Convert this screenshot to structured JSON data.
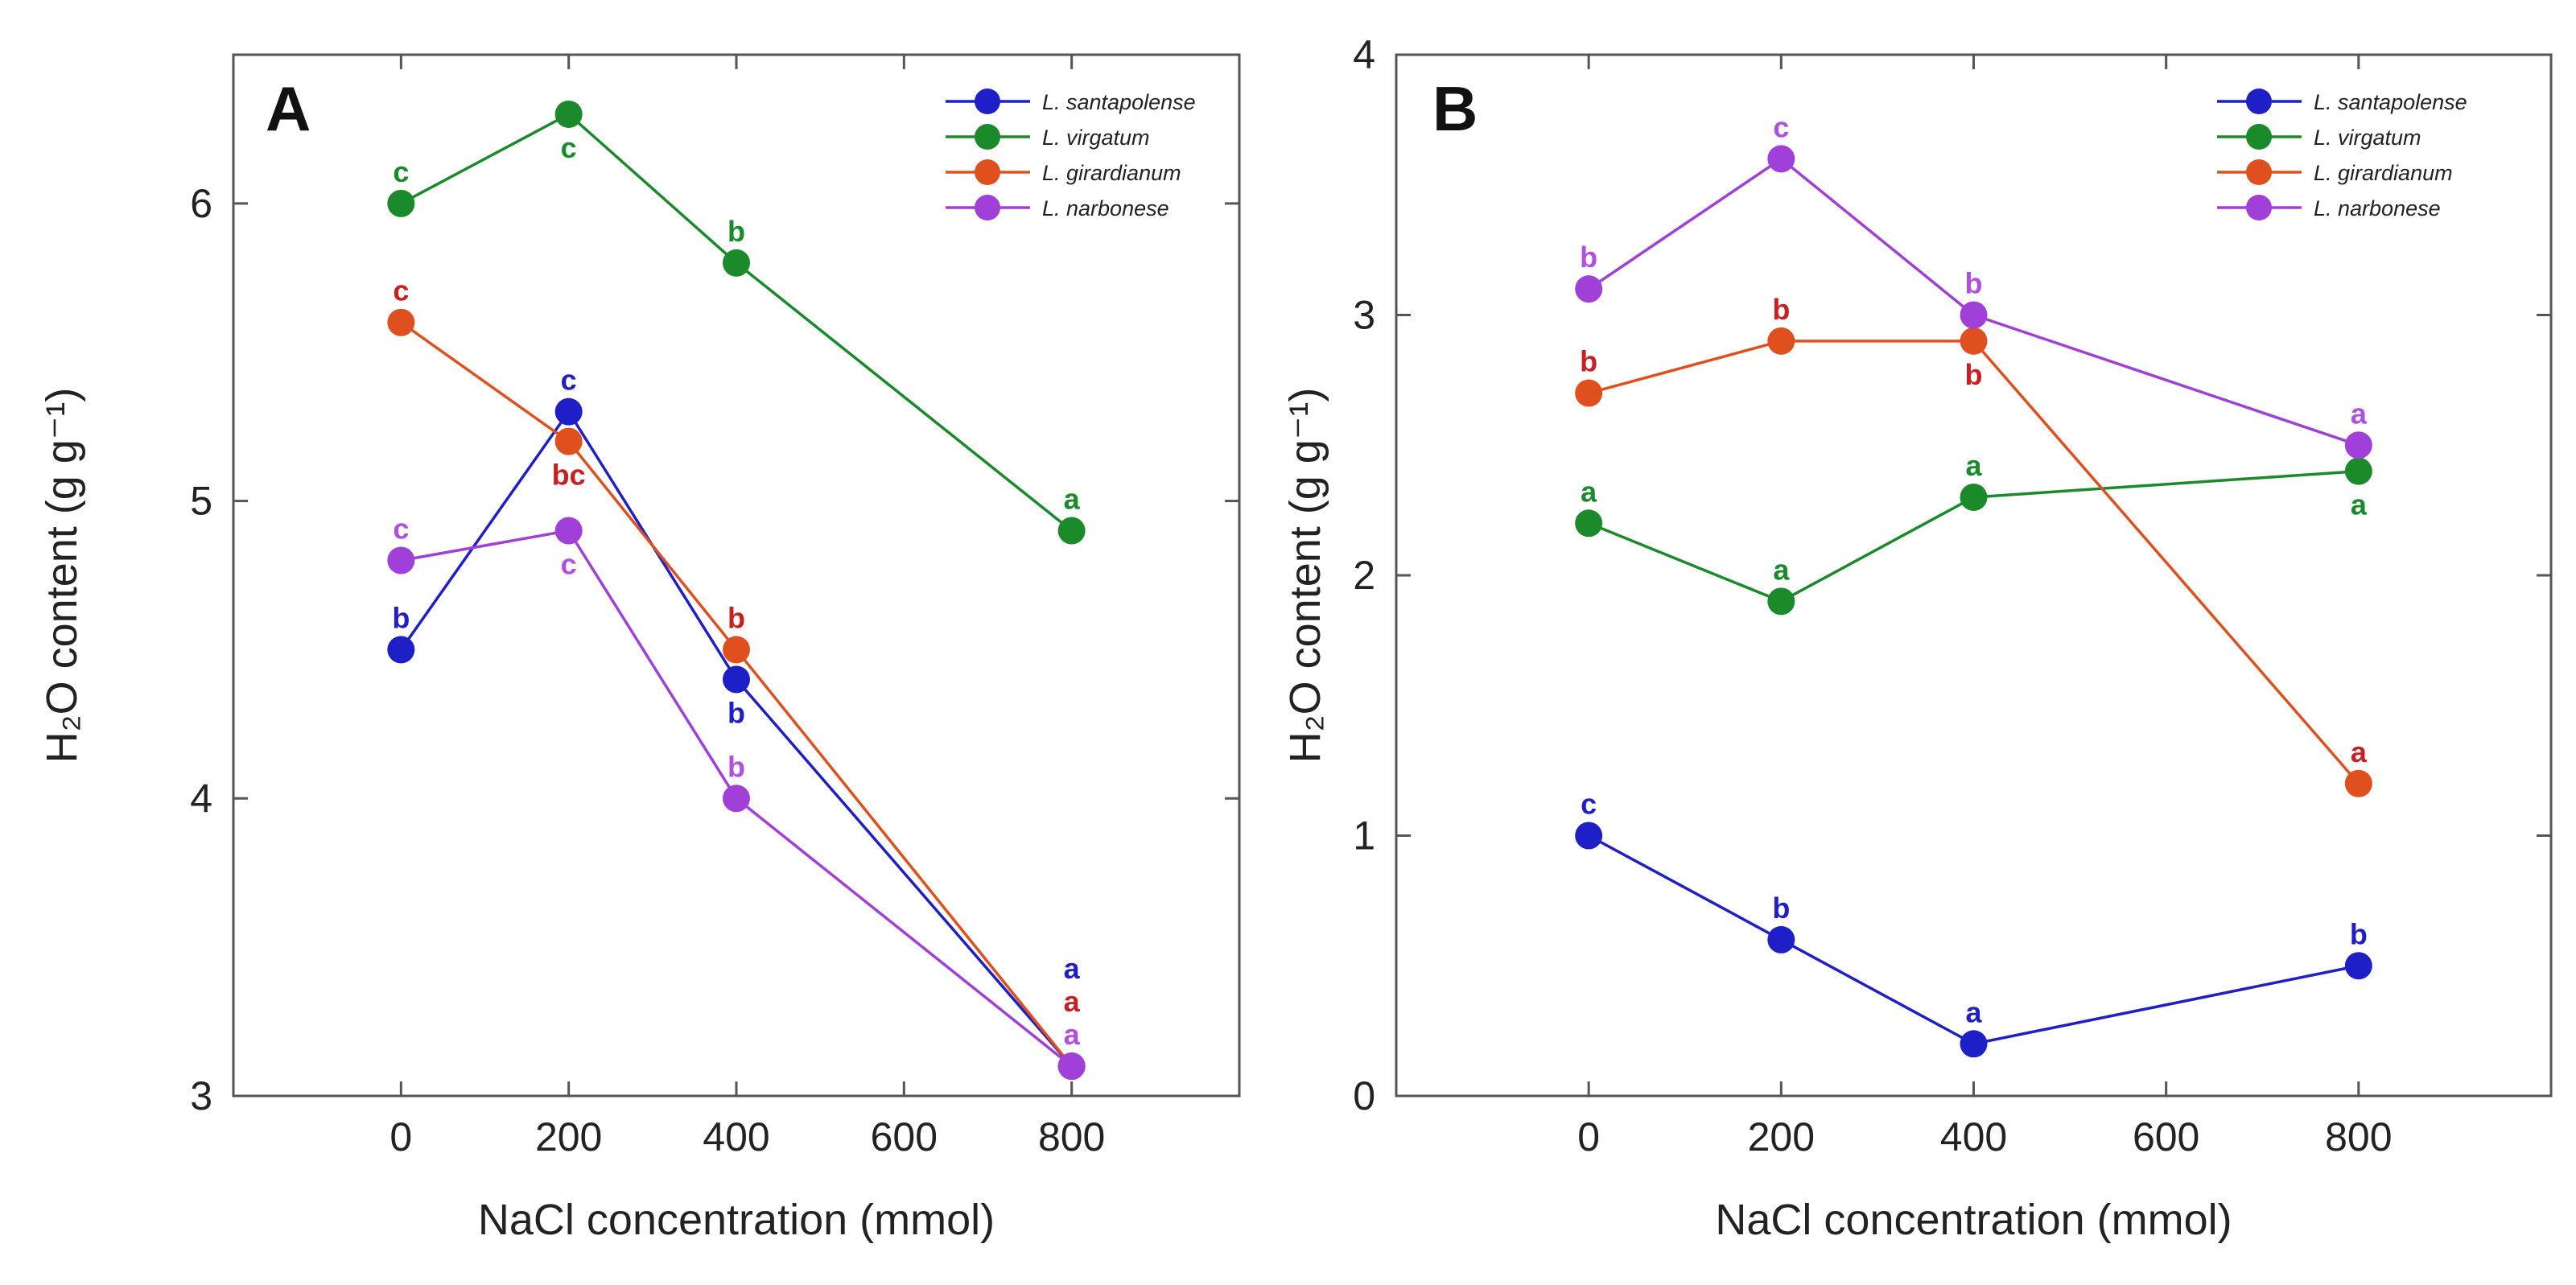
{
  "chart_data": [
    {
      "type": "line",
      "panel_label": "A",
      "xlabel": "NaCl concentration (mmol)",
      "ylabel": "H₂O content (g g⁻¹)",
      "x_ticks": [
        "0",
        "200",
        "400",
        "600",
        "800"
      ],
      "y_ticks": [
        "3",
        "4",
        "5",
        "6"
      ],
      "xlim": [
        -200,
        1000
      ],
      "ylim": [
        3,
        6.5
      ],
      "legend_position": "top-right",
      "x": [
        0,
        200,
        400,
        800
      ],
      "series": [
        {
          "name": "L. santapolense",
          "color": "#1f1fc8",
          "values": [
            4.5,
            5.3,
            4.4,
            3.1
          ],
          "labels": [
            "b",
            "c",
            "b",
            "a"
          ],
          "label_side": [
            "above",
            "above",
            "below",
            "above"
          ],
          "label_offset": [
            1,
            1,
            1,
            3
          ]
        },
        {
          "name": "L. virgatum",
          "color": "#1a8a2a",
          "values": [
            6.0,
            6.3,
            5.8,
            4.9
          ],
          "labels": [
            "c",
            "c",
            "b",
            "a"
          ],
          "label_side": [
            "above",
            "below",
            "above",
            "above"
          ],
          "label_offset": [
            1,
            1,
            1,
            1
          ]
        },
        {
          "name": "L. girardianum",
          "color": "#e0501e",
          "values": [
            5.6,
            5.2,
            4.5,
            3.1
          ],
          "labels": [
            "c",
            "bc",
            "b",
            "a"
          ],
          "label_side": [
            "above",
            "below",
            "above",
            "above"
          ],
          "label_offset": [
            1,
            1,
            1,
            2
          ]
        },
        {
          "name": "L. narbonese",
          "color": "#a040d8",
          "values": [
            4.8,
            4.9,
            4.0,
            3.1
          ],
          "labels": [
            "c",
            "c",
            "b",
            "a"
          ],
          "label_side": [
            "above",
            "below",
            "above",
            "above"
          ],
          "label_offset": [
            1,
            1,
            1,
            1
          ]
        }
      ],
      "label_colors": [
        "#1f1fc8",
        "#1a8a2a",
        "#c82020",
        "#b050e0"
      ]
    },
    {
      "type": "line",
      "panel_label": "B",
      "xlabel": "NaCl concentration (mmol)",
      "ylabel": "H₂O content (g g⁻¹)",
      "x_ticks": [
        "0",
        "200",
        "400",
        "600",
        "800"
      ],
      "y_ticks": [
        "0",
        "1",
        "2",
        "3",
        "4"
      ],
      "xlim": [
        -200,
        1000
      ],
      "ylim": [
        0,
        4
      ],
      "legend_position": "top-right",
      "x": [
        0,
        200,
        400,
        800
      ],
      "series": [
        {
          "name": "L. santapolense",
          "color": "#1f1fc8",
          "values": [
            1.0,
            0.6,
            0.2,
            0.5
          ],
          "labels": [
            "c",
            "b",
            "a",
            "b"
          ],
          "label_side": [
            "above",
            "above",
            "above",
            "above"
          ],
          "label_offset": [
            1,
            1,
            1,
            1
          ]
        },
        {
          "name": "L. virgatum",
          "color": "#1a8a2a",
          "values": [
            2.2,
            1.9,
            2.3,
            2.4
          ],
          "labels": [
            "a",
            "a",
            "a",
            "a"
          ],
          "label_side": [
            "above",
            "above",
            "above",
            "below"
          ],
          "label_offset": [
            1,
            1,
            1,
            1
          ]
        },
        {
          "name": "L. girardianum",
          "color": "#e0501e",
          "values": [
            2.7,
            2.9,
            2.9,
            1.2
          ],
          "labels": [
            "b",
            "b",
            "b",
            "a"
          ],
          "label_side": [
            "above",
            "above",
            "below",
            "above"
          ],
          "label_offset": [
            1,
            1,
            1,
            1
          ]
        },
        {
          "name": "L. narbonese",
          "color": "#a040d8",
          "values": [
            3.1,
            3.6,
            3.0,
            2.5
          ],
          "labels": [
            "b",
            "c",
            "b",
            "a"
          ],
          "label_side": [
            "above",
            "above",
            "above",
            "above"
          ],
          "label_offset": [
            1,
            1,
            1,
            1
          ]
        }
      ],
      "label_colors": [
        "#1f1fc8",
        "#1a8a2a",
        "#c82020",
        "#b050e0"
      ]
    }
  ]
}
